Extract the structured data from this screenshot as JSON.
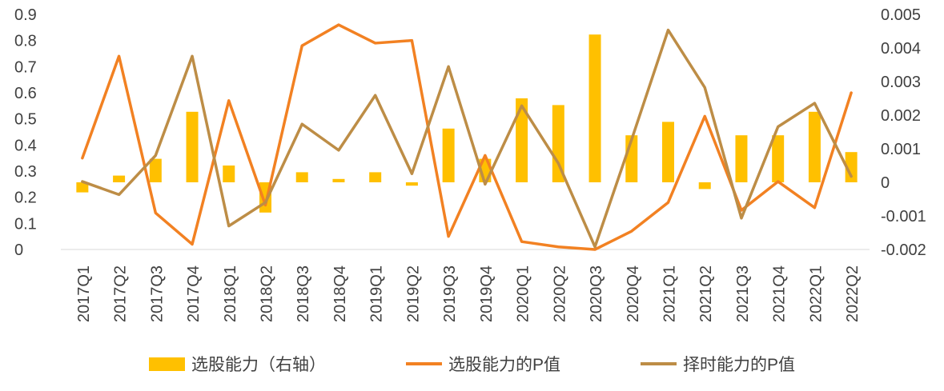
{
  "chart_data": {
    "type": "combo",
    "title": "",
    "grid": false,
    "legend_position": "bottom",
    "categories": [
      "2017Q1",
      "2017Q2",
      "2017Q3",
      "2017Q4",
      "2018Q1",
      "2018Q2",
      "2018Q3",
      "2018Q4",
      "2019Q1",
      "2019Q2",
      "2019Q3",
      "2019Q4",
      "2020Q1",
      "2020Q2",
      "2020Q3",
      "2020Q4",
      "2021Q1",
      "2021Q2",
      "2021Q3",
      "2021Q4",
      "2022Q1",
      "2022Q2"
    ],
    "left_axis": {
      "min": 0,
      "max": 0.9,
      "ticks": [
        "0.9",
        "0.8",
        "0.7",
        "0.6",
        "0.5",
        "0.4",
        "0.3",
        "0.2",
        "0.1",
        "0"
      ]
    },
    "right_axis": {
      "min": -0.002,
      "max": 0.005,
      "ticks": [
        "0.005",
        "0.004",
        "0.003",
        "0.002",
        "0.001",
        "0",
        "-0.001",
        "-0.002"
      ]
    },
    "axis_text_color": "#404040",
    "series": [
      {
        "name": "选股能力（右轴）",
        "type": "bar",
        "axis": "right",
        "color": "#FFC000",
        "values": [
          -0.0003,
          0.0002,
          0.0007,
          0.0021,
          0.0005,
          -0.0009,
          0.0003,
          0.0001,
          0.0003,
          -0.0001,
          0.0016,
          0.0007,
          0.0025,
          0.0023,
          0.0044,
          0.0014,
          0.0018,
          -0.0002,
          0.0014,
          0.0014,
          0.0021,
          0.0009
        ]
      },
      {
        "name": "选股能力的P值",
        "type": "line",
        "axis": "left",
        "color": "#F28122",
        "values": [
          0.35,
          0.74,
          0.14,
          0.02,
          0.57,
          0.17,
          0.78,
          0.86,
          0.79,
          0.8,
          0.05,
          0.36,
          0.03,
          0.01,
          0.0,
          0.07,
          0.18,
          0.51,
          0.15,
          0.26,
          0.16,
          0.6
        ]
      },
      {
        "name": "择时能力的P值",
        "type": "line",
        "axis": "left",
        "color": "#BD8D46",
        "values": [
          0.26,
          0.21,
          0.36,
          0.74,
          0.09,
          0.18,
          0.48,
          0.38,
          0.59,
          0.29,
          0.7,
          0.25,
          0.55,
          0.33,
          0.01,
          0.42,
          0.84,
          0.62,
          0.12,
          0.47,
          0.56,
          0.28
        ]
      }
    ]
  }
}
